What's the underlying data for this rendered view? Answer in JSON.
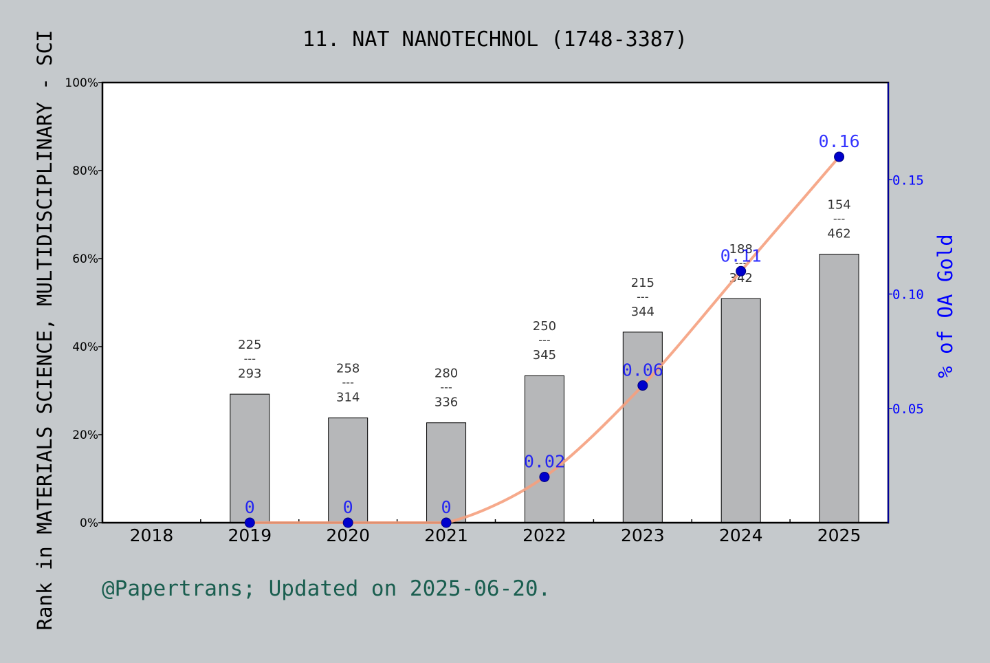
{
  "chart_data": {
    "type": "bar",
    "title": "11. NAT NANOTECHNOL (1748-3387)",
    "ylabel_left": "Rank in MATERIALS SCIENCE, MULTIDISCIPLINARY - SCI",
    "ylabel_right": "% of OA Gold",
    "footer": "@Papertrans; Updated on 2025-06-20.",
    "categories": [
      "2018",
      "2019",
      "2020",
      "2021",
      "2022",
      "2023",
      "2024",
      "2025"
    ],
    "bars": {
      "values": [
        null,
        29.2,
        23.8,
        22.7,
        33.4,
        43.3,
        50.9,
        61.0
      ],
      "ylim": [
        0,
        100
      ],
      "yticks": [
        "0%",
        "20%",
        "40%",
        "60%",
        "80%",
        "100%"
      ],
      "color": "#b6b7b9",
      "labels": [
        null,
        {
          "top": "225",
          "sep": "---",
          "bottom": "293"
        },
        {
          "top": "258",
          "sep": "---",
          "bottom": "314"
        },
        {
          "top": "280",
          "sep": "---",
          "bottom": "336"
        },
        {
          "top": "250",
          "sep": "---",
          "bottom": "345"
        },
        {
          "top": "215",
          "sep": "---",
          "bottom": "344"
        },
        {
          "top": "188",
          "sep": "---",
          "bottom": "342"
        },
        {
          "top": "154",
          "sep": "---",
          "bottom": "462"
        }
      ]
    },
    "line": {
      "values": [
        null,
        0,
        0,
        0,
        0.02,
        0.06,
        0.11,
        0.16
      ],
      "point_labels": [
        null,
        "0",
        "0",
        "0",
        "0.02",
        "0.06",
        "0.11",
        "0.16"
      ],
      "ylim": [
        0,
        0.1925
      ],
      "yticks": [
        "0.05",
        "0.10",
        "0.15"
      ],
      "line_color": "#f5a07e",
      "marker_color": "#0000cc",
      "label_color": "#0000ff"
    },
    "grid": false,
    "footer_color": "#1a5e4f"
  }
}
